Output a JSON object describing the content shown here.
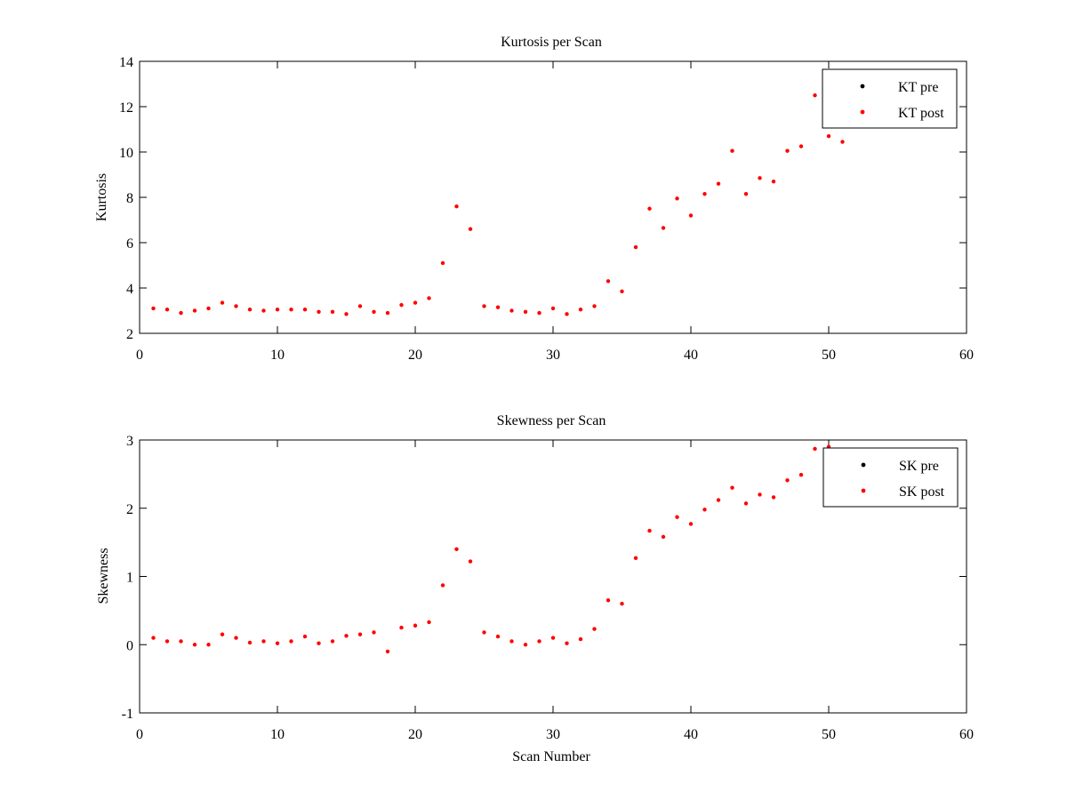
{
  "chart_data": [
    {
      "type": "scatter",
      "title": "Kurtosis per Scan",
      "xlabel": "",
      "ylabel": "Kurtosis",
      "xlim": [
        0,
        60
      ],
      "ylim": [
        2,
        14
      ],
      "xticks": [
        0,
        10,
        20,
        30,
        40,
        50,
        60
      ],
      "yticks": [
        2,
        4,
        6,
        8,
        10,
        12,
        14
      ],
      "grid": false,
      "legend_position": "top-right",
      "series": [
        {
          "name": "KT pre",
          "color": "#000000",
          "marker": "point",
          "x": [],
          "y": []
        },
        {
          "name": "KT post",
          "color": "#ff0000",
          "marker": "point",
          "x": [
            1,
            2,
            3,
            4,
            5,
            6,
            7,
            8,
            9,
            10,
            11,
            12,
            13,
            14,
            15,
            16,
            17,
            18,
            19,
            20,
            21,
            22,
            23,
            24,
            25,
            26,
            27,
            28,
            29,
            30,
            31,
            32,
            33,
            34,
            35,
            36,
            37,
            38,
            39,
            40,
            41,
            42,
            43,
            44,
            45,
            46,
            47,
            48,
            49,
            50,
            51
          ],
          "y": [
            3.1,
            3.05,
            2.9,
            3.0,
            3.1,
            3.35,
            3.2,
            3.05,
            3.0,
            3.05,
            3.05,
            3.05,
            2.95,
            2.95,
            2.85,
            3.2,
            2.95,
            2.9,
            3.25,
            3.35,
            3.55,
            5.1,
            7.6,
            6.6,
            3.2,
            3.15,
            3.0,
            2.95,
            2.9,
            3.1,
            2.85,
            3.05,
            3.2,
            4.3,
            3.85,
            5.8,
            7.5,
            6.65,
            7.95,
            7.2,
            8.15,
            8.6,
            10.05,
            8.15,
            8.85,
            8.7,
            10.05,
            10.25,
            12.5,
            10.7,
            10.45
          ]
        }
      ]
    },
    {
      "type": "scatter",
      "title": "Skewness per Scan",
      "xlabel": "Scan Number",
      "ylabel": "Skewness",
      "xlim": [
        0,
        60
      ],
      "ylim": [
        -1,
        3
      ],
      "xticks": [
        0,
        10,
        20,
        30,
        40,
        50,
        60
      ],
      "yticks": [
        -1,
        0,
        1,
        2,
        3
      ],
      "grid": false,
      "legend_position": "top-right",
      "series": [
        {
          "name": "SK pre",
          "color": "#000000",
          "marker": "point",
          "x": [],
          "y": []
        },
        {
          "name": "SK post",
          "color": "#ff0000",
          "marker": "point",
          "x": [
            1,
            2,
            3,
            4,
            5,
            6,
            7,
            8,
            9,
            10,
            11,
            12,
            13,
            14,
            15,
            16,
            17,
            18,
            19,
            20,
            21,
            22,
            23,
            24,
            25,
            26,
            27,
            28,
            29,
            30,
            31,
            32,
            33,
            34,
            35,
            36,
            37,
            38,
            39,
            40,
            41,
            42,
            43,
            44,
            45,
            46,
            47,
            48,
            49,
            50
          ],
          "y": [
            0.1,
            0.05,
            0.05,
            0.0,
            0.0,
            0.15,
            0.1,
            0.03,
            0.05,
            0.02,
            0.05,
            0.12,
            0.02,
            0.05,
            0.13,
            0.15,
            0.18,
            -0.1,
            0.25,
            0.28,
            0.33,
            0.87,
            1.4,
            1.22,
            0.18,
            0.12,
            0.05,
            0.0,
            0.05,
            0.1,
            0.02,
            0.08,
            0.23,
            0.65,
            0.6,
            1.27,
            1.67,
            1.58,
            1.87,
            1.77,
            1.98,
            2.12,
            2.3,
            2.07,
            2.2,
            2.16,
            2.41,
            2.49,
            2.87,
            2.9
          ]
        }
      ]
    }
  ]
}
